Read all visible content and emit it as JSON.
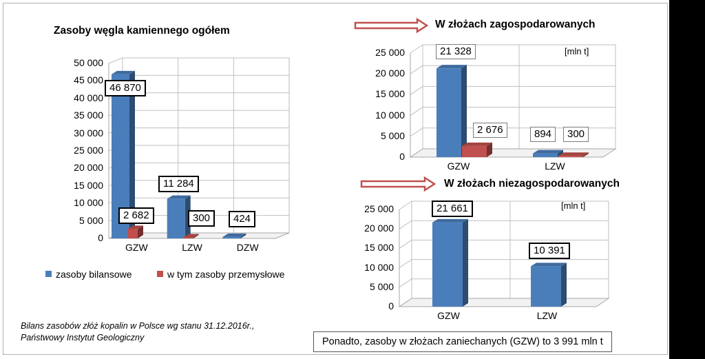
{
  "charts_title": "Zasoby węgla kamiennego ogółem",
  "legend": [
    {
      "label": "zasoby bilansowe",
      "color": "#4a7ebb"
    },
    {
      "label": "w tym zasoby przemysłowe",
      "color": "#c0504d"
    }
  ],
  "source": {
    "line1": "Bilans zasobów złóż kopalin w Polsce  wg stanu 31.12.2016r.,",
    "line2": "Państwowy Instytut Geologiczny"
  },
  "note": "Ponadto, zasoby w złożach zaniechanych (GZW) to 3 991 mln t",
  "chart_data": [
    {
      "type": "bar",
      "title": "Zasoby węgla kamiennego ogółem",
      "categories": [
        "GZW",
        "LZW",
        "DZW"
      ],
      "series": [
        {
          "name": "zasoby bilansowe",
          "values": [
            46870,
            11284,
            424
          ],
          "labels": [
            "46 870",
            "11 284",
            "424"
          ]
        },
        {
          "name": "w tym zasoby przemysłowe",
          "values": [
            2682,
            300,
            0
          ],
          "labels": [
            "2 682",
            "300",
            ""
          ]
        }
      ],
      "yticks": [
        "0",
        "5 000",
        "10 000",
        "15 000",
        "20 000",
        "25 000",
        "30 000",
        "35 000",
        "40 000",
        "45 000",
        "50 000"
      ],
      "ylim": [
        0,
        50000
      ],
      "grid": true
    },
    {
      "type": "bar",
      "title": "W złożach zagospodarowanych",
      "unit": "[mln t]",
      "categories": [
        "GZW",
        "LZW"
      ],
      "series": [
        {
          "name": "zasoby bilansowe",
          "values": [
            21328,
            894
          ],
          "labels": [
            "21 328",
            "894"
          ]
        },
        {
          "name": "w tym zasoby przemysłowe",
          "values": [
            2676,
            300
          ],
          "labels": [
            "2 676",
            "300"
          ]
        }
      ],
      "yticks": [
        "0",
        "5 000",
        "10 000",
        "15 000",
        "20 000",
        "25 000"
      ],
      "ylim": [
        0,
        25000
      ],
      "grid": true
    },
    {
      "type": "bar",
      "title": "W złożach niezagospodarowanych",
      "unit": "[mln t]",
      "categories": [
        "GZW",
        "LZW"
      ],
      "series": [
        {
          "name": "zasoby bilansowe",
          "values": [
            21661,
            10391
          ],
          "labels": [
            "21 661",
            "10 391"
          ]
        }
      ],
      "yticks": [
        "0",
        "5 000",
        "10 000",
        "15 000",
        "20 000",
        "25 000"
      ],
      "ylim": [
        0,
        25000
      ],
      "grid": true
    }
  ]
}
